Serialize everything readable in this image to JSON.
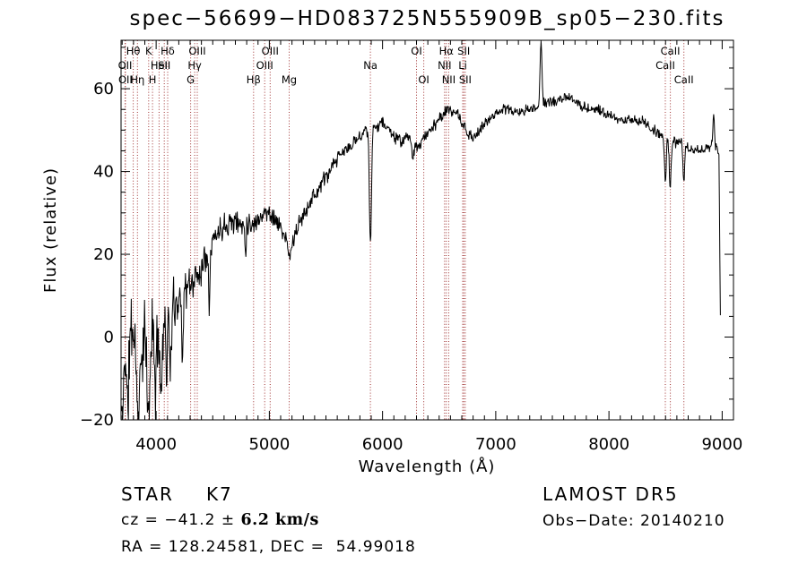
{
  "title": "spec−56699−HD083725N555909B_sp05−230.fits",
  "footer": {
    "class_label": "STAR",
    "subclass": "K7",
    "cz_prefix": "cz = −41.2 ± ",
    "cz_error": "6.2 km/s",
    "ra_dec": "RA = 128.24581, DEC =  54.99018",
    "survey": "LAMOST DR5",
    "obs_date": "Obs−Date: 20140210"
  },
  "chart_data": {
    "type": "line",
    "title": "spec−56699−HD083725N555909B_sp05−230.fits",
    "xlabel": "Wavelength (Å)",
    "ylabel": "Flux (relative)",
    "x_ticks": [
      4000,
      5000,
      6000,
      7000,
      8000,
      9000
    ],
    "y_ticks": [
      -20,
      0,
      20,
      40,
      60
    ],
    "x_minor_step": 100,
    "y_minor_step": 5,
    "xlim": [
      3690,
      9100
    ],
    "ylim": [
      -20,
      71.7
    ],
    "grid": false,
    "legend": "none",
    "line_color": "#000000",
    "marker_line_color": "#9f3030",
    "spectral_lines": [
      {
        "wavelength": 3726,
        "label": "OII",
        "row": 2
      },
      {
        "wavelength": 3729,
        "label": "OII",
        "row": 3
      },
      {
        "wavelength": 3798,
        "label": "Hθ",
        "row": 1
      },
      {
        "wavelength": 3835,
        "label": "Hη",
        "row": 3
      },
      {
        "wavelength": 3934,
        "label": "K",
        "row": 1
      },
      {
        "wavelength": 3968,
        "label": "H",
        "row": 3
      },
      {
        "wavelength": 4026,
        "label": "HeI",
        "row": 2
      },
      {
        "wavelength": 4072,
        "label": "SII",
        "row": 2
      },
      {
        "wavelength": 4102,
        "label": "Hδ",
        "row": 1
      },
      {
        "wavelength": 4305,
        "label": "G",
        "row": 3
      },
      {
        "wavelength": 4340,
        "label": "Hγ",
        "row": 2
      },
      {
        "wavelength": 4363,
        "label": "OIII",
        "row": 1
      },
      {
        "wavelength": 4861,
        "label": "Hβ",
        "row": 3
      },
      {
        "wavelength": 4959,
        "label": "OIII",
        "row": 2
      },
      {
        "wavelength": 5007,
        "label": "OIII",
        "row": 1
      },
      {
        "wavelength": 5175,
        "label": "Mg",
        "row": 3
      },
      {
        "wavelength": 5893,
        "label": "Na",
        "row": 2
      },
      {
        "wavelength": 6300,
        "label": "OI",
        "row": 1
      },
      {
        "wavelength": 6364,
        "label": "OI",
        "row": 3
      },
      {
        "wavelength": 6548,
        "label": "NII",
        "row": 2
      },
      {
        "wavelength": 6563,
        "label": "Hα",
        "row": 1
      },
      {
        "wavelength": 6584,
        "label": "NII",
        "row": 3
      },
      {
        "wavelength": 6708,
        "label": "Li",
        "row": 2
      },
      {
        "wavelength": 6717,
        "label": "SII",
        "row": 1
      },
      {
        "wavelength": 6731,
        "label": "SII",
        "row": 3
      },
      {
        "wavelength": 8498,
        "label": "CaII",
        "row": 2
      },
      {
        "wavelength": 8542,
        "label": "CaII",
        "row": 1
      },
      {
        "wavelength": 8662,
        "label": "CaII",
        "row": 3
      }
    ],
    "spectrum": {
      "continuum_points": [
        [
          3692,
          5,
          11
        ],
        [
          3740,
          2,
          11
        ],
        [
          3790,
          2,
          11
        ],
        [
          3840,
          0,
          12
        ],
        [
          3890,
          -1,
          12
        ],
        [
          3940,
          1,
          11
        ],
        [
          3990,
          3,
          10
        ],
        [
          4040,
          4,
          9
        ],
        [
          4090,
          4,
          8
        ],
        [
          4140,
          7,
          8
        ],
        [
          4190,
          9,
          7
        ],
        [
          4240,
          11,
          6
        ],
        [
          4290,
          12,
          6
        ],
        [
          4340,
          14,
          5
        ],
        [
          4390,
          16,
          5
        ],
        [
          4440,
          20,
          5
        ],
        [
          4490,
          23,
          4
        ],
        [
          4540,
          25,
          4
        ],
        [
          4590,
          27,
          4
        ],
        [
          4640,
          28,
          4
        ],
        [
          4700,
          28,
          3.5
        ],
        [
          4750,
          27,
          3.5
        ],
        [
          4800,
          28,
          3.5
        ],
        [
          4861,
          27,
          3
        ],
        [
          4910,
          29,
          3
        ],
        [
          4960,
          30,
          3
        ],
        [
          5010,
          30,
          3
        ],
        [
          5060,
          28,
          3
        ],
        [
          5110,
          26,
          2.5
        ],
        [
          5150,
          23,
          2.5
        ],
        [
          5180,
          19,
          2.5
        ],
        [
          5215,
          24,
          2.5
        ],
        [
          5260,
          27,
          2.5
        ],
        [
          5310,
          30,
          2.5
        ],
        [
          5360,
          33,
          2.5
        ],
        [
          5420,
          35,
          2.5
        ],
        [
          5480,
          38,
          2.5
        ],
        [
          5540,
          40,
          2.5
        ],
        [
          5600,
          43,
          2.2
        ],
        [
          5660,
          45,
          2.2
        ],
        [
          5720,
          46,
          2
        ],
        [
          5780,
          48,
          2
        ],
        [
          5840,
          50,
          1.8
        ],
        [
          5890,
          50,
          1.5
        ],
        [
          5940,
          51,
          1.8
        ],
        [
          6000,
          52,
          1.8
        ],
        [
          6060,
          50,
          1.8
        ],
        [
          6120,
          48,
          1.8
        ],
        [
          6170,
          47,
          1.8
        ],
        [
          6220,
          49,
          1.8
        ],
        [
          6260,
          46,
          1.8
        ],
        [
          6310,
          46,
          1.8
        ],
        [
          6360,
          48,
          1.8
        ],
        [
          6420,
          50,
          1.8
        ],
        [
          6480,
          52,
          1.8
        ],
        [
          6540,
          54,
          1.8
        ],
        [
          6590,
          55,
          1.8
        ],
        [
          6650,
          54,
          1.8
        ],
        [
          6700,
          52,
          1.8
        ],
        [
          6750,
          49,
          1.8
        ],
        [
          6800,
          48,
          1.8
        ],
        [
          6860,
          50,
          1.8
        ],
        [
          6920,
          52,
          1.8
        ],
        [
          6990,
          54,
          1.5
        ],
        [
          7060,
          55,
          1.5
        ],
        [
          7130,
          55,
          1.5
        ],
        [
          7200,
          54,
          1.5
        ],
        [
          7270,
          55,
          1.5
        ],
        [
          7340,
          55,
          1.5
        ],
        [
          7410,
          56,
          1.5
        ],
        [
          7480,
          57,
          1.5
        ],
        [
          7550,
          57,
          1.5
        ],
        [
          7620,
          58,
          1.5
        ],
        [
          7690,
          57,
          1.5
        ],
        [
          7760,
          56,
          1.5
        ],
        [
          7830,
          55,
          1.5
        ],
        [
          7900,
          55,
          1.5
        ],
        [
          7970,
          54,
          1.5
        ],
        [
          8040,
          53,
          1.5
        ],
        [
          8110,
          52,
          1.8
        ],
        [
          8180,
          53,
          1.8
        ],
        [
          8250,
          52,
          1.8
        ],
        [
          8320,
          52,
          1.8
        ],
        [
          8390,
          50,
          1.8
        ],
        [
          8460,
          49,
          1.8
        ],
        [
          8520,
          48,
          1.8
        ],
        [
          8580,
          47,
          1.8
        ],
        [
          8640,
          47,
          1.8
        ],
        [
          8700,
          46,
          1.8
        ],
        [
          8760,
          45,
          1.8
        ],
        [
          8820,
          45,
          1.8
        ],
        [
          8880,
          46,
          1.8
        ],
        [
          8930,
          46,
          1.8
        ],
        [
          8960,
          45,
          1.5
        ],
        [
          8972,
          44,
          1
        ],
        [
          8978,
          25,
          0.8
        ],
        [
          8985,
          2,
          0.8
        ]
      ],
      "narrow_features": [
        [
          3700,
          -21,
          14
        ],
        [
          3748,
          -18,
          10
        ],
        [
          3843,
          -21,
          14
        ],
        [
          3932,
          -21,
          12
        ],
        [
          3995,
          -13,
          9
        ],
        [
          4043,
          -14,
          9
        ],
        [
          4093,
          -7,
          7
        ],
        [
          4128,
          -9,
          7
        ],
        [
          4232,
          -3,
          7
        ],
        [
          4470,
          9,
          6
        ],
        [
          4790,
          20,
          5
        ],
        [
          5893,
          22,
          9
        ],
        [
          6270,
          43,
          7
        ],
        [
          7400,
          71,
          9
        ],
        [
          8498,
          38,
          8
        ],
        [
          8542,
          36,
          8
        ],
        [
          8662,
          37,
          8
        ],
        [
          8925,
          54,
          7
        ]
      ],
      "noise_seed": 11,
      "sample_step_angstrom": 4.2,
      "wavelength_range": [
        3692,
        8985
      ]
    }
  }
}
